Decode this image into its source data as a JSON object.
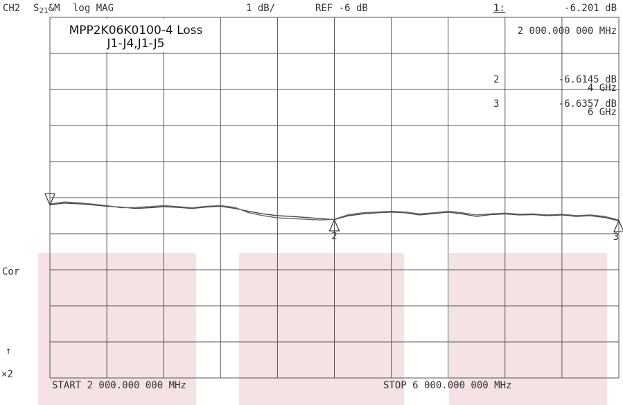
{
  "header": {
    "channel": "CH2",
    "param_main": "S",
    "param_sub": "21",
    "param_suffix": "&M",
    "format": "log MAG",
    "scale": "1 dB/",
    "ref": "REF -6 dB",
    "start": "START 2 000.000 000 MHz",
    "stop": "STOP 6 000.000 000 MHz",
    "status": "Cor",
    "arrow": "↑",
    "factor": "×2"
  },
  "chart_data": {
    "type": "line",
    "title": "MPP2K06K0100-4 Loss",
    "subtitle": "J1-J4,J1-J5",
    "x": [
      2000,
      2100,
      2200,
      2300,
      2400,
      2500,
      2600,
      2700,
      2800,
      2900,
      3000,
      3100,
      3200,
      3300,
      3400,
      3500,
      3600,
      3700,
      3800,
      3900,
      4000,
      4100,
      4200,
      4300,
      4400,
      4500,
      4600,
      4700,
      4800,
      4900,
      5000,
      5100,
      5200,
      5300,
      5400,
      5500,
      5600,
      5700,
      5800,
      5900,
      6000
    ],
    "series": [
      {
        "color": "#444444",
        "values": [
          -6.2,
          -6.15,
          -6.17,
          -6.2,
          -6.24,
          -6.26,
          -6.3,
          -6.28,
          -6.25,
          -6.27,
          -6.3,
          -6.26,
          -6.24,
          -6.3,
          -6.38,
          -6.45,
          -6.5,
          -6.52,
          -6.55,
          -6.58,
          -6.61,
          -6.5,
          -6.45,
          -6.42,
          -6.4,
          -6.42,
          -6.48,
          -6.44,
          -6.4,
          -6.45,
          -6.52,
          -6.47,
          -6.45,
          -6.48,
          -6.47,
          -6.5,
          -6.48,
          -6.52,
          -6.5,
          -6.55,
          -6.64
        ]
      },
      {
        "color": "#666666",
        "values": [
          -6.18,
          -6.12,
          -6.14,
          -6.18,
          -6.22,
          -6.28,
          -6.27,
          -6.25,
          -6.22,
          -6.25,
          -6.28,
          -6.24,
          -6.22,
          -6.27,
          -6.42,
          -6.5,
          -6.56,
          -6.58,
          -6.6,
          -6.62,
          -6.6,
          -6.47,
          -6.42,
          -6.4,
          -6.38,
          -6.4,
          -6.45,
          -6.42,
          -6.38,
          -6.42,
          -6.48,
          -6.45,
          -6.43,
          -6.46,
          -6.45,
          -6.48,
          -6.46,
          -6.5,
          -6.48,
          -6.52,
          -6.62
        ]
      }
    ],
    "xlim": [
      2000,
      6000
    ],
    "ylim": [
      -11,
      -1
    ],
    "grid": {
      "x_divisions": 10,
      "y_divisions": 10
    },
    "markers": {
      "labels": [
        "1:",
        "2",
        "3"
      ],
      "x": [
        2000,
        4000,
        6000
      ],
      "values": [
        -6.201,
        -6.6145,
        -6.6357
      ],
      "value_labels": [
        "-6.201 dB",
        "-6.6145 dB",
        "-6.6357 dB"
      ],
      "x_labels": [
        "2 000.000 000 MHz",
        "4 GHz",
        "6 GHz"
      ]
    }
  }
}
